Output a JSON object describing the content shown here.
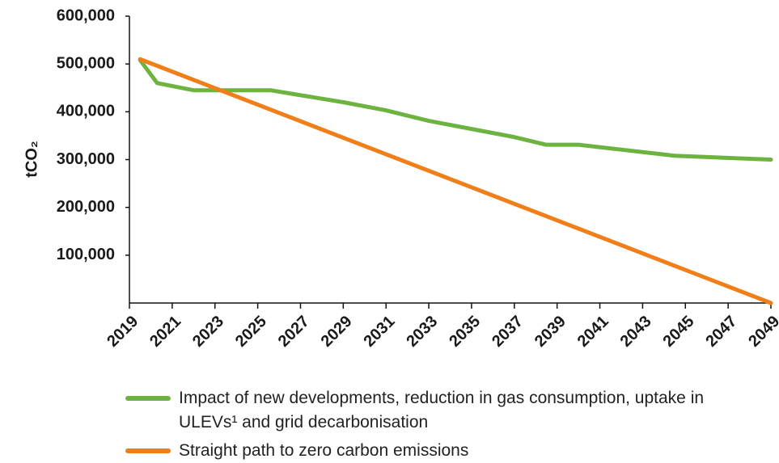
{
  "chart_data": {
    "type": "line",
    "ylabel": "tCO₂",
    "xlim": [
      2019,
      2049
    ],
    "xticks": [
      2019,
      2021,
      2023,
      2025,
      2027,
      2029,
      2031,
      2033,
      2035,
      2037,
      2039,
      2041,
      2043,
      2045,
      2047,
      2049
    ],
    "ylim": [
      0,
      600000
    ],
    "yticks": [
      {
        "value": 100000,
        "label": "100,000"
      },
      {
        "value": 200000,
        "label": "200,000"
      },
      {
        "value": 300000,
        "label": "300,000"
      },
      {
        "value": 400000,
        "label": "400,000"
      },
      {
        "value": 500000,
        "label": "500,000"
      },
      {
        "value": 600000,
        "label": "600,000"
      }
    ],
    "series": [
      {
        "name": "Impact of new developments, reduction in gas consumption, uptake in ULEVs¹ and grid decarbonisation",
        "color": "#6db33f",
        "x": [
          2019.5,
          2020.3,
          2022,
          2025.6,
          2029,
          2031,
          2033,
          2035,
          2037,
          2038.5,
          2040,
          2044.5,
          2049
        ],
        "values": [
          508000,
          460000,
          445000,
          445000,
          420000,
          403000,
          381000,
          364000,
          347000,
          331000,
          331000,
          308000,
          300000
        ]
      },
      {
        "name": "Straight path to zero carbon emissions",
        "color": "#f07f1a",
        "x": [
          2019.5,
          2049
        ],
        "values": [
          510000,
          0
        ]
      }
    ]
  }
}
